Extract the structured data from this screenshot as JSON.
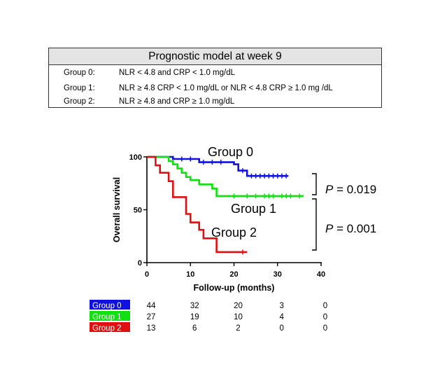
{
  "model": {
    "title": "Prognostic model at week 9",
    "rows": [
      {
        "group": "Group 0:",
        "definition": "NLR < 4.8 and CRP < 1.0 mg/dL"
      },
      {
        "group": "Group 1:",
        "definition": "NLR ≥ 4.8 CRP < 1.0 mg/dL  or NLR < 4.8 CRP ≥ 1.0 mg /dL"
      },
      {
        "group": "Group 2:",
        "definition": "NLR ≥ 4.8 and CRP ≥ 1.0 mg/dL"
      }
    ]
  },
  "chart_data": {
    "type": "line",
    "xlabel": "Follow-up (months)",
    "ylabel": "Overall survival",
    "xlim": [
      0,
      40
    ],
    "ylim": [
      0,
      100
    ],
    "xticks": [
      0,
      10,
      20,
      30,
      40
    ],
    "yticks": [
      0,
      50,
      100
    ],
    "grid": false,
    "series": [
      {
        "name": "Group 0",
        "color": "#1010e0",
        "step_points": [
          [
            0,
            100
          ],
          [
            6,
            100
          ],
          [
            6,
            98
          ],
          [
            12,
            98
          ],
          [
            12,
            95
          ],
          [
            20,
            95
          ],
          [
            20,
            93
          ],
          [
            21,
            93
          ],
          [
            21,
            87
          ],
          [
            23,
            87
          ],
          [
            23,
            82
          ],
          [
            32.5,
            82
          ]
        ],
        "censor_x": [
          8,
          10,
          13,
          15,
          17,
          22,
          24,
          25,
          26,
          27,
          28,
          29,
          30,
          31,
          32
        ]
      },
      {
        "name": "Group 1",
        "color": "#10e010",
        "step_points": [
          [
            0,
            100
          ],
          [
            5,
            100
          ],
          [
            5,
            96
          ],
          [
            6,
            96
          ],
          [
            6,
            93
          ],
          [
            7,
            93
          ],
          [
            7,
            89
          ],
          [
            8,
            89
          ],
          [
            8,
            85
          ],
          [
            9,
            85
          ],
          [
            9,
            81
          ],
          [
            10,
            81
          ],
          [
            10,
            78
          ],
          [
            12,
            78
          ],
          [
            12,
            74
          ],
          [
            15,
            74
          ],
          [
            15,
            70
          ],
          [
            16,
            70
          ],
          [
            16,
            63
          ],
          [
            36,
            63
          ]
        ],
        "censor_x": [
          20,
          23,
          25,
          27,
          28,
          29,
          31,
          32,
          33,
          35
        ]
      },
      {
        "name": "Group 2",
        "color": "#e01010",
        "step_points": [
          [
            0,
            100
          ],
          [
            2,
            100
          ],
          [
            2,
            92
          ],
          [
            3,
            92
          ],
          [
            3,
            85
          ],
          [
            5,
            85
          ],
          [
            5,
            77
          ],
          [
            6,
            77
          ],
          [
            6,
            62
          ],
          [
            9,
            62
          ],
          [
            9,
            46
          ],
          [
            10,
            46
          ],
          [
            10,
            38
          ],
          [
            12,
            38
          ],
          [
            12,
            31
          ],
          [
            13,
            31
          ],
          [
            13,
            23
          ],
          [
            16,
            23
          ],
          [
            16,
            10
          ],
          [
            23,
            10
          ]
        ],
        "censor_x": [
          22
        ]
      }
    ],
    "annotations": [
      {
        "text": "Group 0"
      },
      {
        "text": "Group 1"
      },
      {
        "text": "Group 2"
      },
      {
        "text": "P = 0.019",
        "compares": [
          "Group 0",
          "Group 1"
        ]
      },
      {
        "text": "P = 0.001",
        "compares": [
          "Group 1",
          "Group 2"
        ]
      }
    ],
    "risk_table": {
      "times": [
        0,
        10,
        20,
        30,
        40
      ],
      "rows": [
        {
          "label": "Group 0",
          "color": "#1010e0",
          "counts": [
            "44",
            "32",
            "20",
            "3",
            "0"
          ]
        },
        {
          "label": "Group 1",
          "color": "#10e010",
          "counts": [
            "27",
            "19",
            "10",
            "4",
            "0"
          ]
        },
        {
          "label": "Group 2",
          "color": "#e01010",
          "counts": [
            "13",
            "6",
            "2",
            "0",
            "0"
          ]
        }
      ]
    }
  }
}
